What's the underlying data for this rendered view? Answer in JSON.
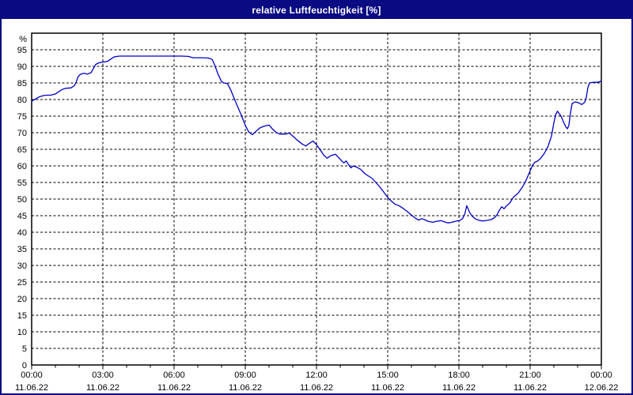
{
  "window": {
    "title": "relative Luftfeuchtigkeit [%]"
  },
  "colors": {
    "titlebar_bg": "#0a0a82",
    "title_text": "#ffffff",
    "window_border": "#0a0a82",
    "background": "#ffffff",
    "grid": "#000000",
    "line": "#0000c4"
  },
  "chart_data": {
    "type": "line",
    "title": "relative Luftfeuchtigkeit [%]",
    "ylabel": "%",
    "xlabel": "",
    "ylim": [
      0,
      100
    ],
    "ytick_min": 0,
    "ytick_max": 95,
    "ytick_step": 5,
    "x_hours_total": 24,
    "x_minor_tick_every_hours": 1,
    "grid": "dashed",
    "legend": "none",
    "x_major_ticks": [
      {
        "hour": 0,
        "time": "00:00",
        "date": "11.06.22"
      },
      {
        "hour": 3,
        "time": "03:00",
        "date": "11.06.22"
      },
      {
        "hour": 6,
        "time": "06:00",
        "date": "11.06.22"
      },
      {
        "hour": 9,
        "time": "09:00",
        "date": "11.06.22"
      },
      {
        "hour": 12,
        "time": "12:00",
        "date": "11.06.22"
      },
      {
        "hour": 15,
        "time": "15:00",
        "date": "11.06.22"
      },
      {
        "hour": 18,
        "time": "18:00",
        "date": "11.06.22"
      },
      {
        "hour": 21,
        "time": "21:00",
        "date": "11.06.22"
      },
      {
        "hour": 24,
        "time": "00:00",
        "date": "12.06.22"
      }
    ],
    "series": [
      {
        "name": "relative Luftfeuchtigkeit",
        "color": "#0000c4",
        "points": [
          [
            0,
            79.5
          ],
          [
            0.2,
            80.3
          ],
          [
            0.35,
            80.9
          ],
          [
            0.5,
            81.2
          ],
          [
            0.6,
            81.3
          ],
          [
            0.8,
            81.3
          ],
          [
            1,
            81.7
          ],
          [
            1.15,
            82.4
          ],
          [
            1.3,
            83.1
          ],
          [
            1.45,
            83.4
          ],
          [
            1.65,
            83.5
          ],
          [
            1.8,
            84.2
          ],
          [
            1.88,
            85.3
          ],
          [
            1.95,
            86.8
          ],
          [
            2.05,
            87.6
          ],
          [
            2.2,
            87.9
          ],
          [
            2.35,
            87.7
          ],
          [
            2.5,
            88.1
          ],
          [
            2.6,
            89.3
          ],
          [
            2.7,
            90.6
          ],
          [
            2.85,
            91.1
          ],
          [
            3,
            91.3
          ],
          [
            3.2,
            91.5
          ],
          [
            3.35,
            92.3
          ],
          [
            3.5,
            92.9
          ],
          [
            3.7,
            93.1
          ],
          [
            4.5,
            93.1
          ],
          [
            5.5,
            93.1
          ],
          [
            6.3,
            93.1
          ],
          [
            6.6,
            93
          ],
          [
            6.8,
            92.6
          ],
          [
            7.2,
            92.6
          ],
          [
            7.45,
            92.5
          ],
          [
            7.6,
            92.1
          ],
          [
            7.7,
            90.6
          ],
          [
            7.85,
            87.7
          ],
          [
            8,
            85.4
          ],
          [
            8.1,
            85
          ],
          [
            8.25,
            84.8
          ],
          [
            8.4,
            82.7
          ],
          [
            8.55,
            80
          ],
          [
            8.7,
            77.5
          ],
          [
            8.85,
            75
          ],
          [
            9,
            72.2
          ],
          [
            9.15,
            70.2
          ],
          [
            9.3,
            69.4
          ],
          [
            9.45,
            70.4
          ],
          [
            9.6,
            71.4
          ],
          [
            9.8,
            72
          ],
          [
            10,
            72.3
          ],
          [
            10.15,
            71.1
          ],
          [
            10.3,
            70.1
          ],
          [
            10.45,
            69.6
          ],
          [
            10.7,
            69.6
          ],
          [
            10.85,
            69.9
          ],
          [
            11.05,
            68.7
          ],
          [
            11.2,
            67.7
          ],
          [
            11.4,
            66.6
          ],
          [
            11.55,
            66
          ],
          [
            11.7,
            66.8
          ],
          [
            11.85,
            67.5
          ],
          [
            12,
            66.4
          ],
          [
            12.15,
            64.9
          ],
          [
            12.3,
            63.3
          ],
          [
            12.45,
            62.3
          ],
          [
            12.6,
            63.1
          ],
          [
            12.8,
            63.5
          ],
          [
            12.95,
            62.4
          ],
          [
            13.05,
            61.6
          ],
          [
            13.15,
            60.9
          ],
          [
            13.25,
            61.5
          ],
          [
            13.35,
            60.4
          ],
          [
            13.45,
            59.4
          ],
          [
            13.55,
            60
          ],
          [
            13.7,
            59.6
          ],
          [
            13.85,
            59
          ],
          [
            13.95,
            58.3
          ],
          [
            14.05,
            57.6
          ],
          [
            14.2,
            56.9
          ],
          [
            14.35,
            56.2
          ],
          [
            14.5,
            55
          ],
          [
            14.65,
            53.8
          ],
          [
            14.8,
            52.4
          ],
          [
            15,
            50.5
          ],
          [
            15.15,
            49.4
          ],
          [
            15.3,
            48.5
          ],
          [
            15.5,
            47.9
          ],
          [
            15.65,
            47.2
          ],
          [
            15.8,
            46.4
          ],
          [
            16,
            45.2
          ],
          [
            16.15,
            44.3
          ],
          [
            16.3,
            43.7
          ],
          [
            16.45,
            44.1
          ],
          [
            16.55,
            43.8
          ],
          [
            16.7,
            43.3
          ],
          [
            16.9,
            43
          ],
          [
            17.05,
            43.3
          ],
          [
            17.25,
            43.5
          ],
          [
            17.4,
            43.1
          ],
          [
            17.55,
            42.8
          ],
          [
            17.7,
            43
          ],
          [
            17.9,
            43.4
          ],
          [
            18.05,
            43.6
          ],
          [
            18.15,
            44.1
          ],
          [
            18.25,
            45.6
          ],
          [
            18.33,
            48
          ],
          [
            18.45,
            46
          ],
          [
            18.55,
            44.9
          ],
          [
            18.7,
            44
          ],
          [
            18.85,
            43.6
          ],
          [
            19,
            43.4
          ],
          [
            19.2,
            43.6
          ],
          [
            19.35,
            43.8
          ],
          [
            19.5,
            44.4
          ],
          [
            19.6,
            45.2
          ],
          [
            19.7,
            46.6
          ],
          [
            19.8,
            47.7
          ],
          [
            19.9,
            47.1
          ],
          [
            20,
            47.9
          ],
          [
            20.15,
            48.9
          ],
          [
            20.3,
            50.6
          ],
          [
            20.5,
            51.8
          ],
          [
            20.7,
            53.9
          ],
          [
            20.85,
            56
          ],
          [
            21,
            58.5
          ],
          [
            21.1,
            60.2
          ],
          [
            21.2,
            61.1
          ],
          [
            21.3,
            61.4
          ],
          [
            21.45,
            62.3
          ],
          [
            21.6,
            63.8
          ],
          [
            21.75,
            65.8
          ],
          [
            21.9,
            69
          ],
          [
            22,
            73
          ],
          [
            22.08,
            75.5
          ],
          [
            22.15,
            76.5
          ],
          [
            22.3,
            75
          ],
          [
            22.42,
            73
          ],
          [
            22.5,
            71.8
          ],
          [
            22.57,
            71.2
          ],
          [
            22.63,
            72.2
          ],
          [
            22.7,
            76
          ],
          [
            22.77,
            78.8
          ],
          [
            22.9,
            79.3
          ],
          [
            23.05,
            79
          ],
          [
            23.17,
            78.5
          ],
          [
            23.25,
            78.9
          ],
          [
            23.3,
            79.2
          ],
          [
            23.37,
            80.8
          ],
          [
            23.43,
            83.5
          ],
          [
            23.5,
            85
          ],
          [
            23.65,
            85.2
          ],
          [
            23.8,
            85.2
          ],
          [
            23.9,
            85.3
          ],
          [
            24,
            85.6
          ]
        ]
      }
    ]
  }
}
